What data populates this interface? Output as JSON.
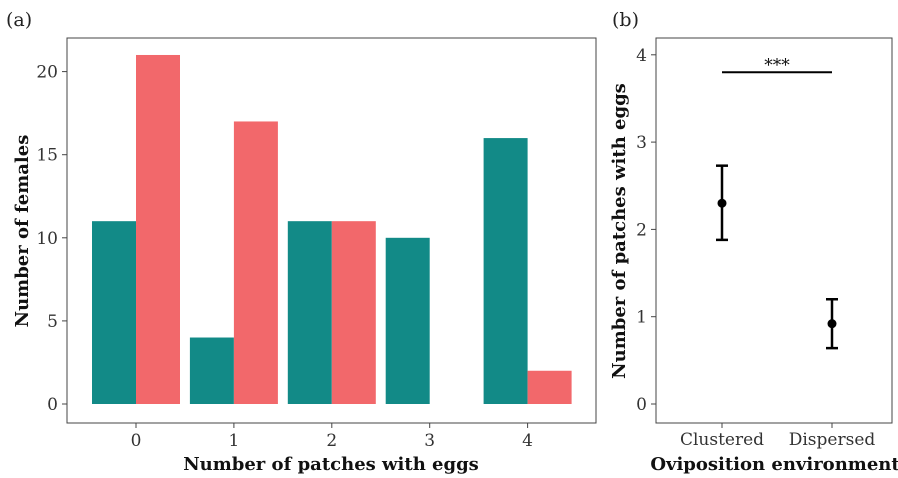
{
  "chart_data": [
    {
      "panel_label": "(a)",
      "type": "bar",
      "xlabel": "Number of patches with eggs",
      "ylabel": "Number of females",
      "categories": [
        "0",
        "1",
        "2",
        "3",
        "4"
      ],
      "yticks": [
        "0",
        "5",
        "10",
        "15",
        "20"
      ],
      "ylim": [
        0,
        22
      ],
      "grid": false,
      "legend": "none",
      "series": [
        {
          "color": "#128a87",
          "values": [
            11,
            4,
            11,
            10,
            16
          ]
        },
        {
          "color": "#f2686b",
          "values": [
            21,
            17,
            11,
            0,
            2
          ]
        }
      ]
    },
    {
      "panel_label": "(b)",
      "type": "scatter",
      "xlabel": "Oviposition environment",
      "ylabel": "Number of patches with eggs",
      "categories": [
        "Clustered",
        "Dispersed"
      ],
      "yticks": [
        "0",
        "1",
        "2",
        "3",
        "4"
      ],
      "ylim": [
        -0.15,
        4.15
      ],
      "grid": false,
      "points": [
        {
          "category": "Clustered",
          "mean": 2.3,
          "lower": 1.88,
          "upper": 2.73
        },
        {
          "category": "Dispersed",
          "mean": 0.92,
          "lower": 0.64,
          "upper": 1.2
        }
      ],
      "significance": {
        "label": "***",
        "y": 3.8
      }
    }
  ]
}
